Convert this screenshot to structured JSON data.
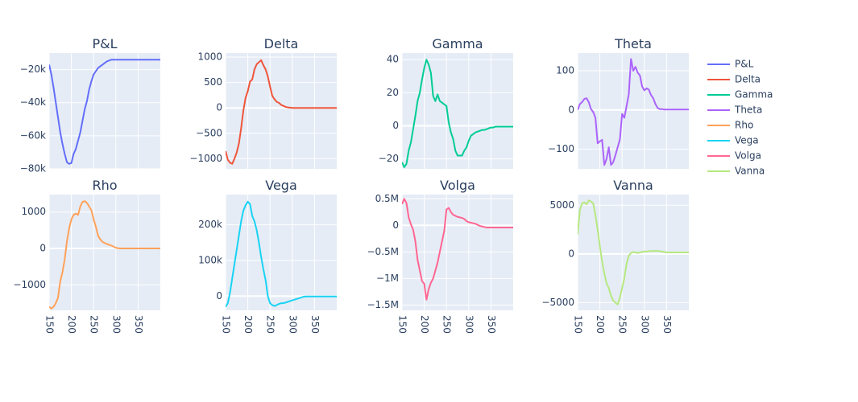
{
  "chart_data": {
    "type": "line",
    "x": [
      150,
      155,
      160,
      165,
      170,
      175,
      180,
      185,
      190,
      195,
      200,
      205,
      210,
      215,
      220,
      225,
      230,
      235,
      240,
      245,
      250,
      255,
      260,
      265,
      270,
      275,
      280,
      285,
      290,
      295,
      300,
      305,
      310,
      315,
      320,
      325,
      330,
      335,
      340,
      345,
      350,
      355,
      360,
      365,
      370,
      375,
      380,
      385,
      390,
      395,
      400
    ],
    "xlim": [
      150,
      400
    ],
    "xticks": [
      150,
      200,
      250,
      300,
      350
    ],
    "colors": [
      "#636efa",
      "#EF553B",
      "#00cc96",
      "#ab63fa",
      "#FFA15A",
      "#19d3f3",
      "#FF6692",
      "#B6E880"
    ],
    "legend_position": "right",
    "grid": true,
    "subplots": [
      {
        "title": "P&L",
        "name": "P&L",
        "ylim": [
          -80000,
          -10000
        ],
        "yticks": [
          -80000,
          -60000,
          -40000,
          -20000
        ],
        "yticklabels": [
          "−80k",
          "−60k",
          "−40k",
          "−20k"
        ],
        "values": [
          -17000,
          -23000,
          -31000,
          -40000,
          -49000,
          -58000,
          -65000,
          -71000,
          -76000,
          -77000,
          -76500,
          -71000,
          -68000,
          -63000,
          -58000,
          -51000,
          -44000,
          -39000,
          -32000,
          -27000,
          -23000,
          -21000,
          -19000,
          -18000,
          -17000,
          -16000,
          -15000,
          -14500,
          -14000,
          -14000,
          -14000,
          -14000,
          -14000,
          -14000,
          -14000,
          -14000,
          -14000,
          -14000,
          -14000,
          -14000,
          -14000,
          -14000,
          -14000,
          -14000,
          -14000,
          -14000,
          -14000,
          -14000,
          -14000,
          -14000,
          -14000
        ]
      },
      {
        "title": "Delta",
        "name": "Delta",
        "ylim": [
          -1200,
          1080
        ],
        "yticks": [
          -1000,
          -500,
          0,
          500,
          1000
        ],
        "yticklabels": [
          "−1000",
          "−500",
          "0",
          "500",
          "1000"
        ],
        "values": [
          -850,
          -1020,
          -1080,
          -1100,
          -1000,
          -880,
          -700,
          -400,
          -50,
          200,
          330,
          520,
          560,
          760,
          860,
          900,
          940,
          840,
          760,
          620,
          420,
          240,
          170,
          120,
          100,
          60,
          40,
          20,
          10,
          5,
          0,
          0,
          0,
          0,
          0,
          0,
          0,
          0,
          0,
          0,
          0,
          0,
          0,
          0,
          0,
          0,
          0,
          0,
          0,
          0,
          0
        ]
      },
      {
        "title": "Gamma",
        "name": "Gamma",
        "ylim": [
          -26,
          44
        ],
        "yticks": [
          -20,
          0,
          20,
          40
        ],
        "yticklabels": [
          "−20",
          "0",
          "20",
          "40"
        ],
        "values": [
          -22,
          -25,
          -23,
          -15,
          -10,
          -2,
          6,
          15,
          20,
          28,
          35,
          40,
          37,
          32,
          18,
          15,
          19,
          15,
          14,
          13,
          12,
          2,
          -4,
          -8,
          -15,
          -18,
          -18,
          -18,
          -15,
          -13,
          -9,
          -6,
          -5,
          -4,
          -3.5,
          -3,
          -2.5,
          -2.5,
          -2,
          -1.5,
          -1,
          -1,
          -0.5,
          -0.5,
          -0.5,
          -0.5,
          -0.5,
          -0.5,
          -0.5,
          -0.5,
          -0.5
        ]
      },
      {
        "title": "Theta",
        "name": "Theta",
        "ylim": [
          -150,
          145
        ],
        "yticks": [
          -100,
          0,
          100
        ],
        "yticklabels": [
          "−100",
          "0",
          "100"
        ],
        "values": [
          0,
          15,
          20,
          28,
          30,
          20,
          2,
          -5,
          -20,
          -85,
          -80,
          -76,
          -140,
          -125,
          -95,
          -140,
          -133,
          -115,
          -95,
          -75,
          -10,
          -20,
          10,
          40,
          130,
          100,
          110,
          95,
          88,
          60,
          50,
          55,
          52,
          38,
          30,
          15,
          5,
          2,
          2,
          1,
          1,
          1,
          1,
          1,
          1,
          1,
          1,
          1,
          1,
          1,
          1
        ]
      },
      {
        "title": "Rho",
        "name": "Rho",
        "ylim": [
          -1700,
          1480
        ],
        "yticks": [
          -1000,
          0,
          1000
        ],
        "yticklabels": [
          "−1000",
          "0",
          "1000"
        ],
        "values": [
          -1600,
          -1650,
          -1600,
          -1500,
          -1350,
          -900,
          -650,
          -300,
          200,
          550,
          800,
          920,
          960,
          920,
          1150,
          1280,
          1300,
          1250,
          1150,
          1050,
          800,
          600,
          350,
          250,
          180,
          150,
          120,
          100,
          80,
          50,
          20,
          5,
          0,
          0,
          0,
          0,
          0,
          0,
          0,
          0,
          0,
          0,
          0,
          0,
          0,
          0,
          0,
          0,
          0,
          0,
          0
        ]
      },
      {
        "title": "Vega",
        "name": "Vega",
        "ylim": [
          -40000,
          285000
        ],
        "yticks": [
          0,
          100000,
          200000
        ],
        "yticklabels": [
          "0",
          "100k",
          "200k"
        ],
        "values": [
          -30000,
          -20000,
          10000,
          50000,
          90000,
          130000,
          170000,
          210000,
          240000,
          255000,
          265000,
          258000,
          225000,
          210000,
          185000,
          150000,
          110000,
          75000,
          45000,
          0,
          -20000,
          -25000,
          -28000,
          -25000,
          -22000,
          -20000,
          -20000,
          -18000,
          -16000,
          -14000,
          -12000,
          -10000,
          -8000,
          -6000,
          -4000,
          -2000,
          -1000,
          -1000,
          -1000,
          -1000,
          -1000,
          -1000,
          -1000,
          -1000,
          -1000,
          -1000,
          -1000,
          -1000,
          -1000,
          -1000,
          -1000
        ]
      },
      {
        "title": "Volga",
        "name": "Volga",
        "ylim": [
          -1600000,
          580000
        ],
        "yticks": [
          -1500000,
          -1000000,
          -500000,
          0,
          500000
        ],
        "yticklabels": [
          "−1.5M",
          "−1M",
          "−0.5M",
          "0",
          "0.5M"
        ],
        "values": [
          400000,
          500000,
          420000,
          150000,
          20000,
          -80000,
          -300000,
          -650000,
          -850000,
          -1050000,
          -1100000,
          -1400000,
          -1200000,
          -1080000,
          -1000000,
          -850000,
          -700000,
          -500000,
          -300000,
          -100000,
          300000,
          330000,
          250000,
          200000,
          180000,
          160000,
          150000,
          140000,
          120000,
          80000,
          60000,
          50000,
          40000,
          30000,
          10000,
          -10000,
          -20000,
          -30000,
          -40000,
          -40000,
          -40000,
          -40000,
          -40000,
          -40000,
          -40000,
          -40000,
          -40000,
          -40000,
          -40000,
          -40000,
          -40000
        ]
      },
      {
        "title": "Vanna",
        "name": "Vanna",
        "ylim": [
          -5800,
          6100
        ],
        "yticks": [
          -5000,
          0,
          5000
        ],
        "yticklabels": [
          "−5000",
          "0",
          "5000"
        ],
        "values": [
          2000,
          4500,
          5200,
          5300,
          5100,
          5500,
          5400,
          5200,
          4000,
          2500,
          800,
          -800,
          -2000,
          -3000,
          -3500,
          -4300,
          -4800,
          -5000,
          -5200,
          -4500,
          -3500,
          -2500,
          -1000,
          -200,
          100,
          200,
          150,
          100,
          150,
          200,
          250,
          250,
          280,
          300,
          300,
          300,
          300,
          280,
          250,
          200,
          150,
          150,
          150,
          150,
          150,
          150,
          150,
          150,
          150,
          150,
          150
        ]
      }
    ]
  }
}
